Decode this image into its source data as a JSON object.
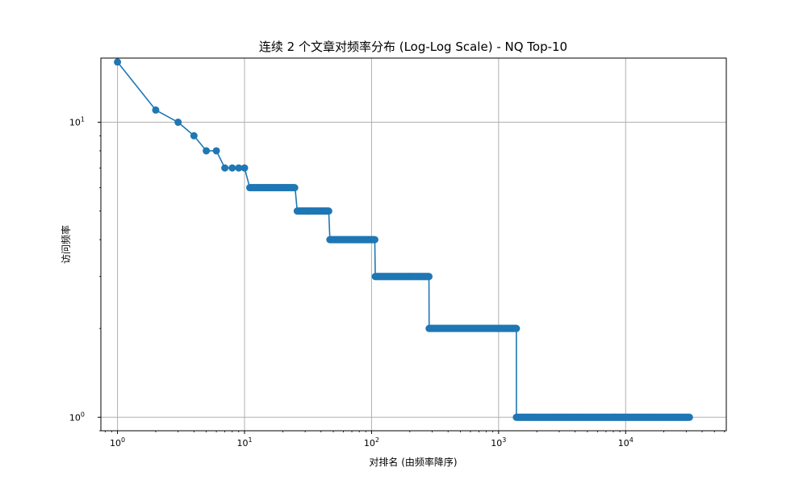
{
  "chart_data": {
    "type": "line",
    "title": "连续 2 个文章对频率分布 (Log-Log Scale) - NQ Top-10",
    "xlabel": "对排名 (由频率降序)",
    "ylabel": "访问频率",
    "x_scale": "log",
    "y_scale": "log",
    "xlim": [
      0.74,
      62000
    ],
    "ylim": [
      0.9,
      16.5
    ],
    "grid": true,
    "x_ticks": [
      {
        "value": 1,
        "base": "10",
        "exp": "0"
      },
      {
        "value": 10,
        "base": "10",
        "exp": "1"
      },
      {
        "value": 100,
        "base": "10",
        "exp": "2"
      },
      {
        "value": 1000,
        "base": "10",
        "exp": "3"
      },
      {
        "value": 10000,
        "base": "10",
        "exp": "4"
      }
    ],
    "y_ticks": [
      {
        "value": 1,
        "base": "10",
        "exp": "0"
      },
      {
        "value": 10,
        "base": "10",
        "exp": "1"
      }
    ],
    "color": "#1f77b4",
    "series": [
      {
        "marker": "circle",
        "points": [
          [
            1,
            16
          ],
          [
            2,
            11
          ],
          [
            3,
            10
          ],
          [
            4,
            9
          ],
          [
            5,
            8
          ],
          [
            6,
            8
          ],
          [
            7,
            7
          ],
          [
            8,
            7
          ],
          [
            9,
            7
          ],
          [
            10,
            7
          ]
        ],
        "steps": [
          {
            "value": 6,
            "from": 11,
            "to": 25
          },
          {
            "value": 5,
            "from": 26,
            "to": 46
          },
          {
            "value": 4,
            "from": 47,
            "to": 106
          },
          {
            "value": 3,
            "from": 107,
            "to": 283
          },
          {
            "value": 2,
            "from": 284,
            "to": 1380
          },
          {
            "value": 1,
            "from": 1381,
            "to": 32000
          }
        ]
      }
    ]
  }
}
